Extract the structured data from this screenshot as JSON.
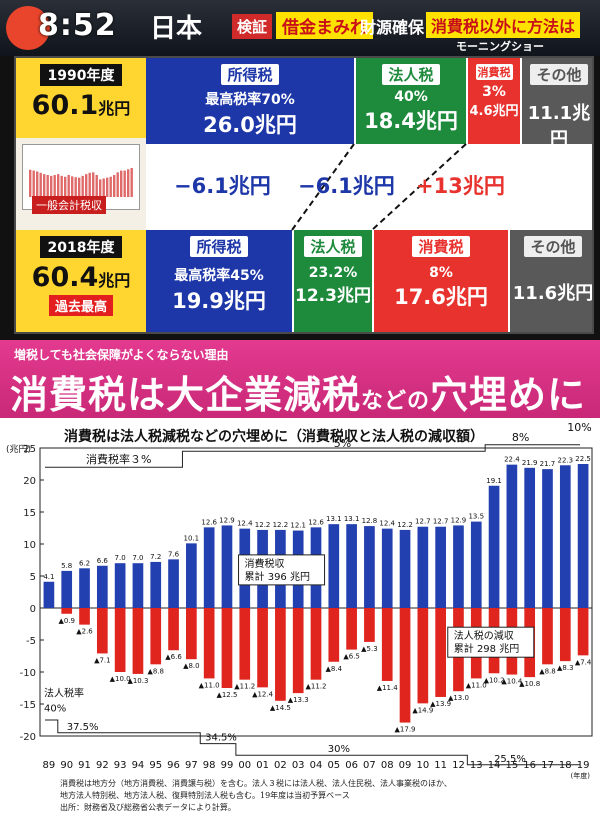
{
  "ticker": {
    "time": "8:52",
    "show": "日本",
    "verify_tag": "検証",
    "debt_tag": "借金まみれ",
    "fund_tag": "財源確保",
    "other_tag": "消費税以外に方法は",
    "program": "モーニングショー"
  },
  "board": {
    "year1990": {
      "label": "1990年度",
      "value": "60.1",
      "unit": "兆円"
    },
    "year2018": {
      "label": "2018年度",
      "value": "60.4",
      "unit": "兆円",
      "record": "過去最高"
    },
    "mini_chart_label": "一般会計税収",
    "rows1990": {
      "income": {
        "title": "所得税",
        "rate": "最高税率70%",
        "amount": "26.0兆円"
      },
      "corp": {
        "title": "法人税",
        "rate": "40%",
        "amount": "18.4兆円"
      },
      "cons": {
        "title": "消費税",
        "rate": "3%",
        "amount": "4.6兆円"
      },
      "other": {
        "title": "その他",
        "amount": "11.1兆円"
      }
    },
    "rows2018": {
      "income": {
        "title": "所得税",
        "rate": "最高税率45%",
        "amount": "19.9兆円"
      },
      "corp": {
        "title": "法人税",
        "rate": "23.2%",
        "amount": "12.3兆円"
      },
      "cons": {
        "title": "消費税",
        "rate": "8%",
        "amount": "17.6兆円"
      },
      "other": {
        "title": "その他",
        "amount": "11.6兆円"
      }
    },
    "diffs": {
      "income": "−6.1兆円",
      "corp": "−6.1兆円",
      "cons": "+13兆円"
    }
  },
  "band": {
    "subtitle": "増税しても社会保障がよくならない理由",
    "headline_a": "消費税は大企業減税",
    "headline_b": "などの",
    "headline_c": "穴埋めに"
  },
  "chart_data": {
    "type": "bar",
    "title": "消費税は法人税減税などの穴埋めに（消費税収と法人税の減収額）",
    "ylabel": "(兆円)",
    "xlabel": "(年度)",
    "ylim": [
      -20,
      25
    ],
    "yticks": [
      25,
      20,
      15,
      10,
      5,
      0,
      -5,
      -10,
      -15,
      -20
    ],
    "categories": [
      "89",
      "90",
      "91",
      "92",
      "93",
      "94",
      "95",
      "96",
      "97",
      "98",
      "99",
      "00",
      "01",
      "02",
      "03",
      "04",
      "05",
      "06",
      "07",
      "08",
      "09",
      "10",
      "11",
      "12",
      "13",
      "14",
      "15",
      "16",
      "17",
      "18",
      "19"
    ],
    "series": [
      {
        "name": "消費税収",
        "color": "#2240b0",
        "values": [
          4.1,
          5.8,
          6.2,
          6.6,
          7.0,
          7.0,
          7.2,
          7.6,
          10.1,
          12.6,
          12.9,
          12.4,
          12.2,
          12.2,
          12.1,
          12.6,
          13.1,
          13.1,
          12.8,
          12.4,
          12.2,
          12.7,
          12.7,
          12.9,
          13.5,
          19.1,
          22.4,
          21.9,
          21.7,
          22.3,
          22.5
        ]
      },
      {
        "name": "法人税の減収",
        "color": "#e0241e",
        "values": [
          0,
          -0.9,
          -2.6,
          -7.1,
          -10.0,
          -10.3,
          -8.8,
          -6.6,
          -8.0,
          -11.0,
          -12.5,
          -11.2,
          -12.4,
          -14.5,
          -13.3,
          -11.2,
          -8.4,
          -6.5,
          -5.3,
          -11.4,
          -17.9,
          -14.9,
          -13.9,
          -13.0,
          -11.0,
          -10.2,
          -10.4,
          -10.8,
          -8.8,
          -8.3,
          -7.4
        ],
        "labels": [
          "",
          "▲0.9",
          "▲2.6",
          "▲7.1",
          "▲10.0",
          "▲10.3",
          "▲8.8",
          "▲6.6",
          "▲8.0",
          "▲11.0",
          "▲12.5",
          "▲11.2",
          "▲12.4",
          "▲14.5",
          "▲13.3",
          "▲11.2",
          "▲8.4",
          "▲6.5",
          "▲5.3",
          "▲11.4",
          "▲17.9",
          "▲14.9",
          "▲13.9",
          "▲13.0",
          "▲11.0",
          "▲10.2",
          "▲10.4",
          "▲10.8",
          "▲8.8",
          "▲8.3",
          "▲7.4"
        ]
      }
    ],
    "pos_labels": [
      "4.1",
      "5.8",
      "6.2",
      "6.6",
      "7.0",
      "7.0",
      "7.2",
      "7.6",
      "10.1",
      "12.6",
      "12.9",
      "12.4",
      "12.2",
      "12.2",
      "12.1",
      "12.6",
      "13.1",
      "13.1",
      "12.8",
      "12.4",
      "12.2",
      "12.7",
      "12.7",
      "12.9",
      "13.5",
      "19.1",
      "22.4",
      "21.9",
      "21.7",
      "22.3",
      "22.5"
    ],
    "consumption_rate_label": "消費税率３%",
    "consumption_rates": [
      "5%",
      "8%",
      "10%"
    ],
    "corp_rate_title": "法人税率",
    "corp_rates": [
      "40%",
      "37.5%",
      "34.5%",
      "30%",
      "25.5%"
    ],
    "callout_cons": {
      "line1": "消費税収",
      "line2": "累計 396 兆円"
    },
    "callout_corp": {
      "line1": "法人税の減収",
      "line2": "累計 298 兆円"
    }
  },
  "notes": [
    "消費税は地方分（地方消費税、消費譲与税）を含む。法人３税には法人税、法人住民税、法人事業税のほか、",
    "地方法人特別税、地方法人税、復興特別法人税も含む。19年度は当初予算ベース",
    "出所：財務省及び総務省公表データにより計算。"
  ]
}
